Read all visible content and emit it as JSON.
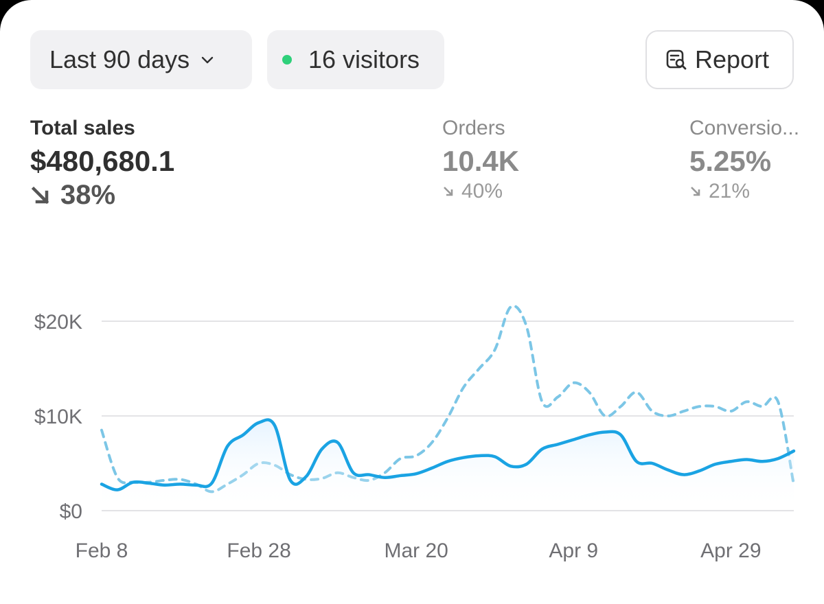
{
  "toolbar": {
    "range_label": "Last 90 days",
    "visitors_label": "16 visitors",
    "report_label": "Report",
    "live_dot_color": "#2fd07a"
  },
  "metrics": [
    {
      "label": "Total sales",
      "value": "$480,680.1",
      "delta": "38%",
      "direction": "down"
    },
    {
      "label": "Orders",
      "value": "10.4K",
      "delta": "40%",
      "direction": "down"
    },
    {
      "label": "Conversio...",
      "value": "5.25%",
      "delta": "21%",
      "direction": "down"
    }
  ],
  "chart_data": {
    "type": "line",
    "x": [
      "Feb 8",
      "Feb 10",
      "Feb 12",
      "Feb 14",
      "Feb 16",
      "Feb 18",
      "Feb 20",
      "Feb 22",
      "Feb 24",
      "Feb 26",
      "Feb 28",
      "Mar 2",
      "Mar 4",
      "Mar 6",
      "Mar 8",
      "Mar 10",
      "Mar 12",
      "Mar 14",
      "Mar 16",
      "Mar 18",
      "Mar 20",
      "Mar 22",
      "Mar 24",
      "Mar 26",
      "Mar 28",
      "Mar 30",
      "Apr 1",
      "Apr 3",
      "Apr 5",
      "Apr 7",
      "Apr 9",
      "Apr 11",
      "Apr 13",
      "Apr 15",
      "Apr 17",
      "Apr 19",
      "Apr 21",
      "Apr 23",
      "Apr 25",
      "Apr 27",
      "Apr 29",
      "May 1",
      "May 3",
      "May 5",
      "May 7"
    ],
    "x_tick_labels": [
      "Feb 8",
      "Feb 28",
      "Mar 20",
      "Apr 9",
      "Apr 29"
    ],
    "y_tick_labels": [
      "$20K",
      "$10K",
      "$0"
    ],
    "ylim": [
      0,
      20000
    ],
    "grid": true,
    "series": [
      {
        "style": "solid",
        "color": "#1aa3e3",
        "values": [
          2800,
          2200,
          3000,
          2900,
          2700,
          2800,
          2700,
          2900,
          6800,
          8000,
          9300,
          9000,
          3200,
          3600,
          6500,
          7200,
          4000,
          3800,
          3500,
          3700,
          3900,
          4500,
          5200,
          5600,
          5800,
          5700,
          4700,
          4900,
          6500,
          7000,
          7500,
          8000,
          8300,
          8000,
          5200,
          5000,
          4300,
          3800,
          4200,
          4900,
          5200,
          5400,
          5200,
          5500,
          6300
        ]
      },
      {
        "style": "dashed",
        "color": "#7cc6e6",
        "values": [
          8500,
          3500,
          3000,
          3000,
          3200,
          3300,
          2800,
          2000,
          2800,
          3800,
          5000,
          4800,
          3800,
          3300,
          3400,
          4000,
          3500,
          3200,
          4000,
          5500,
          5800,
          7200,
          9800,
          13000,
          15000,
          17000,
          21500,
          19500,
          11500,
          12000,
          13500,
          12500,
          10000,
          11000,
          12500,
          10500,
          10000,
          10500,
          11000,
          11000,
          10500,
          11500,
          11000,
          11500,
          2700
        ]
      }
    ]
  }
}
